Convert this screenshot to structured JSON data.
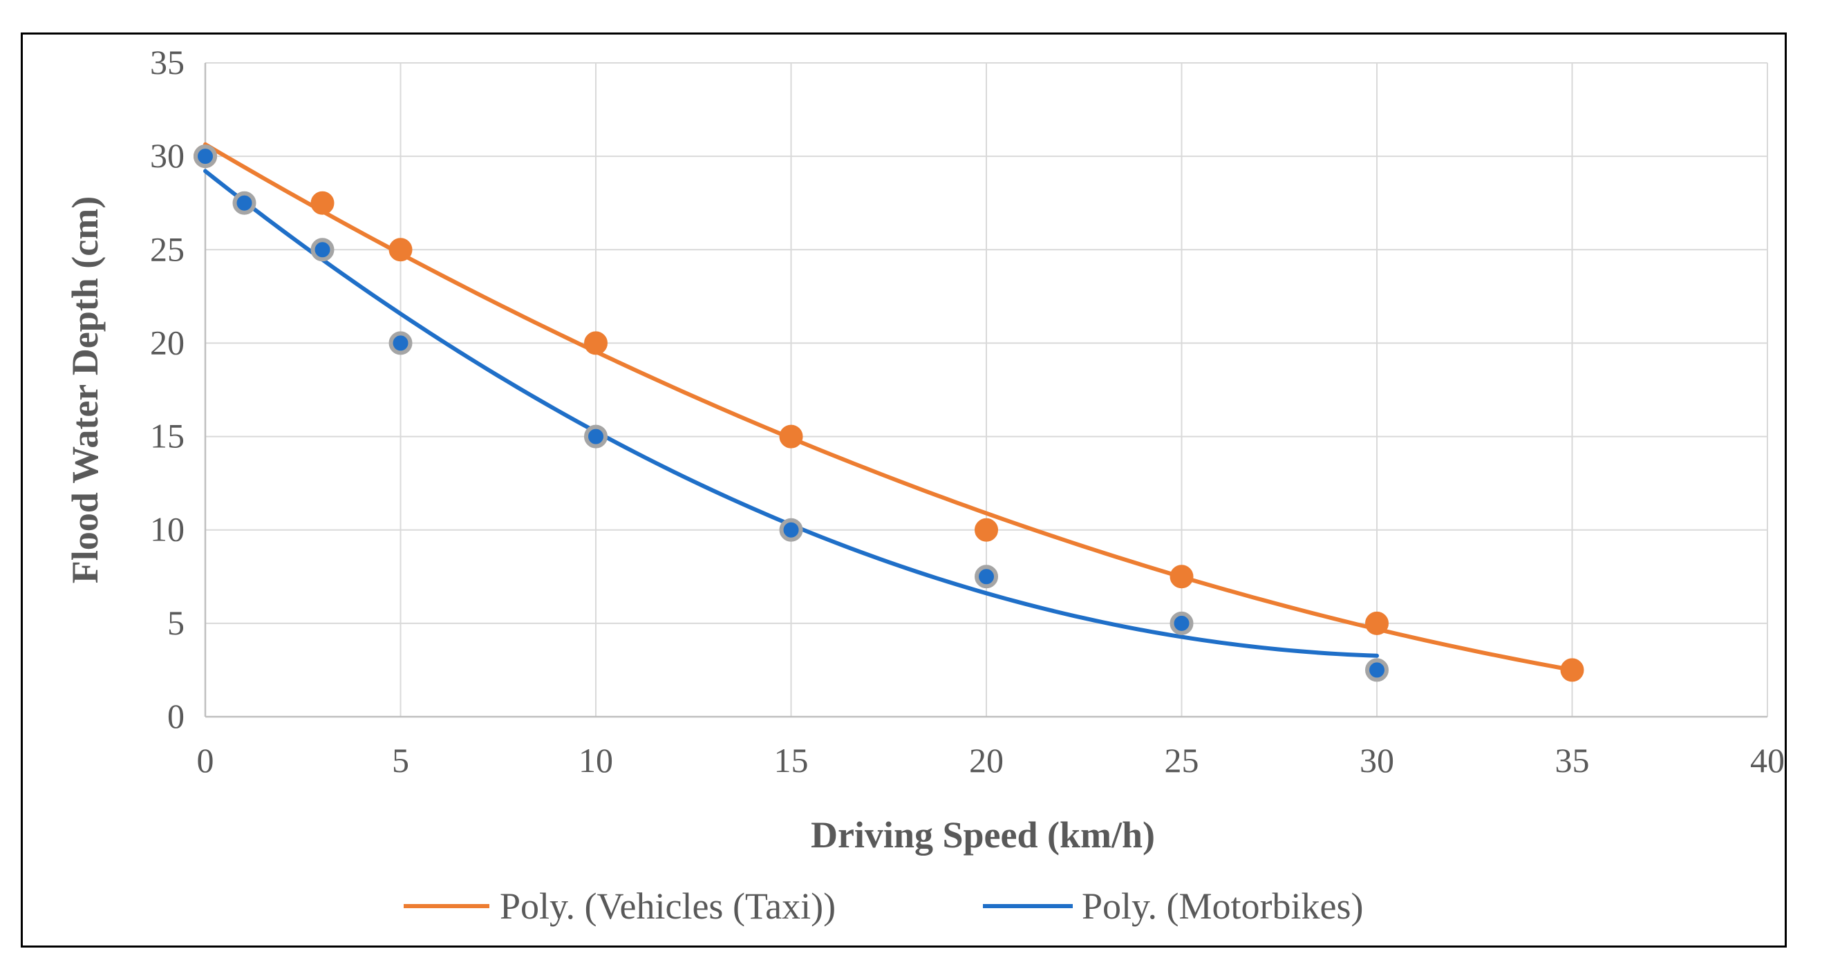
{
  "chart_data": {
    "type": "scatter",
    "title": "",
    "xlabel": "Driving Speed (km/h)",
    "ylabel": "Flood Water Depth (cm)",
    "xlim": [
      0,
      40
    ],
    "ylim": [
      0,
      35
    ],
    "xticks": [
      0,
      5,
      10,
      15,
      20,
      25,
      30,
      35,
      40
    ],
    "yticks": [
      0,
      5,
      10,
      15,
      20,
      25,
      30,
      35
    ],
    "grid": true,
    "legend_position": "bottom",
    "series": [
      {
        "name": "Vehicles (Taxi)",
        "trendline_name": "Poly. (Vehicles (Taxi))",
        "color": "#ED7D31",
        "marker_edge": "#ED7D31",
        "x": [
          0,
          3,
          5,
          10,
          15,
          20,
          25,
          30,
          35
        ],
        "y": [
          30,
          27.5,
          25,
          20,
          15,
          10,
          7.5,
          5,
          2.5
        ],
        "trend_x_range": [
          0,
          35
        ]
      },
      {
        "name": "Motorbikes",
        "trendline_name": "Poly. (Motorbikes)",
        "color": "#1F6FC8",
        "marker_edge": "#A5A5A5",
        "x": [
          0,
          1,
          3,
          5,
          10,
          15,
          20,
          25,
          30
        ],
        "y": [
          30,
          27.5,
          25,
          20,
          15,
          10,
          7.5,
          5,
          2.5
        ],
        "trend_x_range": [
          0,
          30
        ]
      }
    ]
  }
}
